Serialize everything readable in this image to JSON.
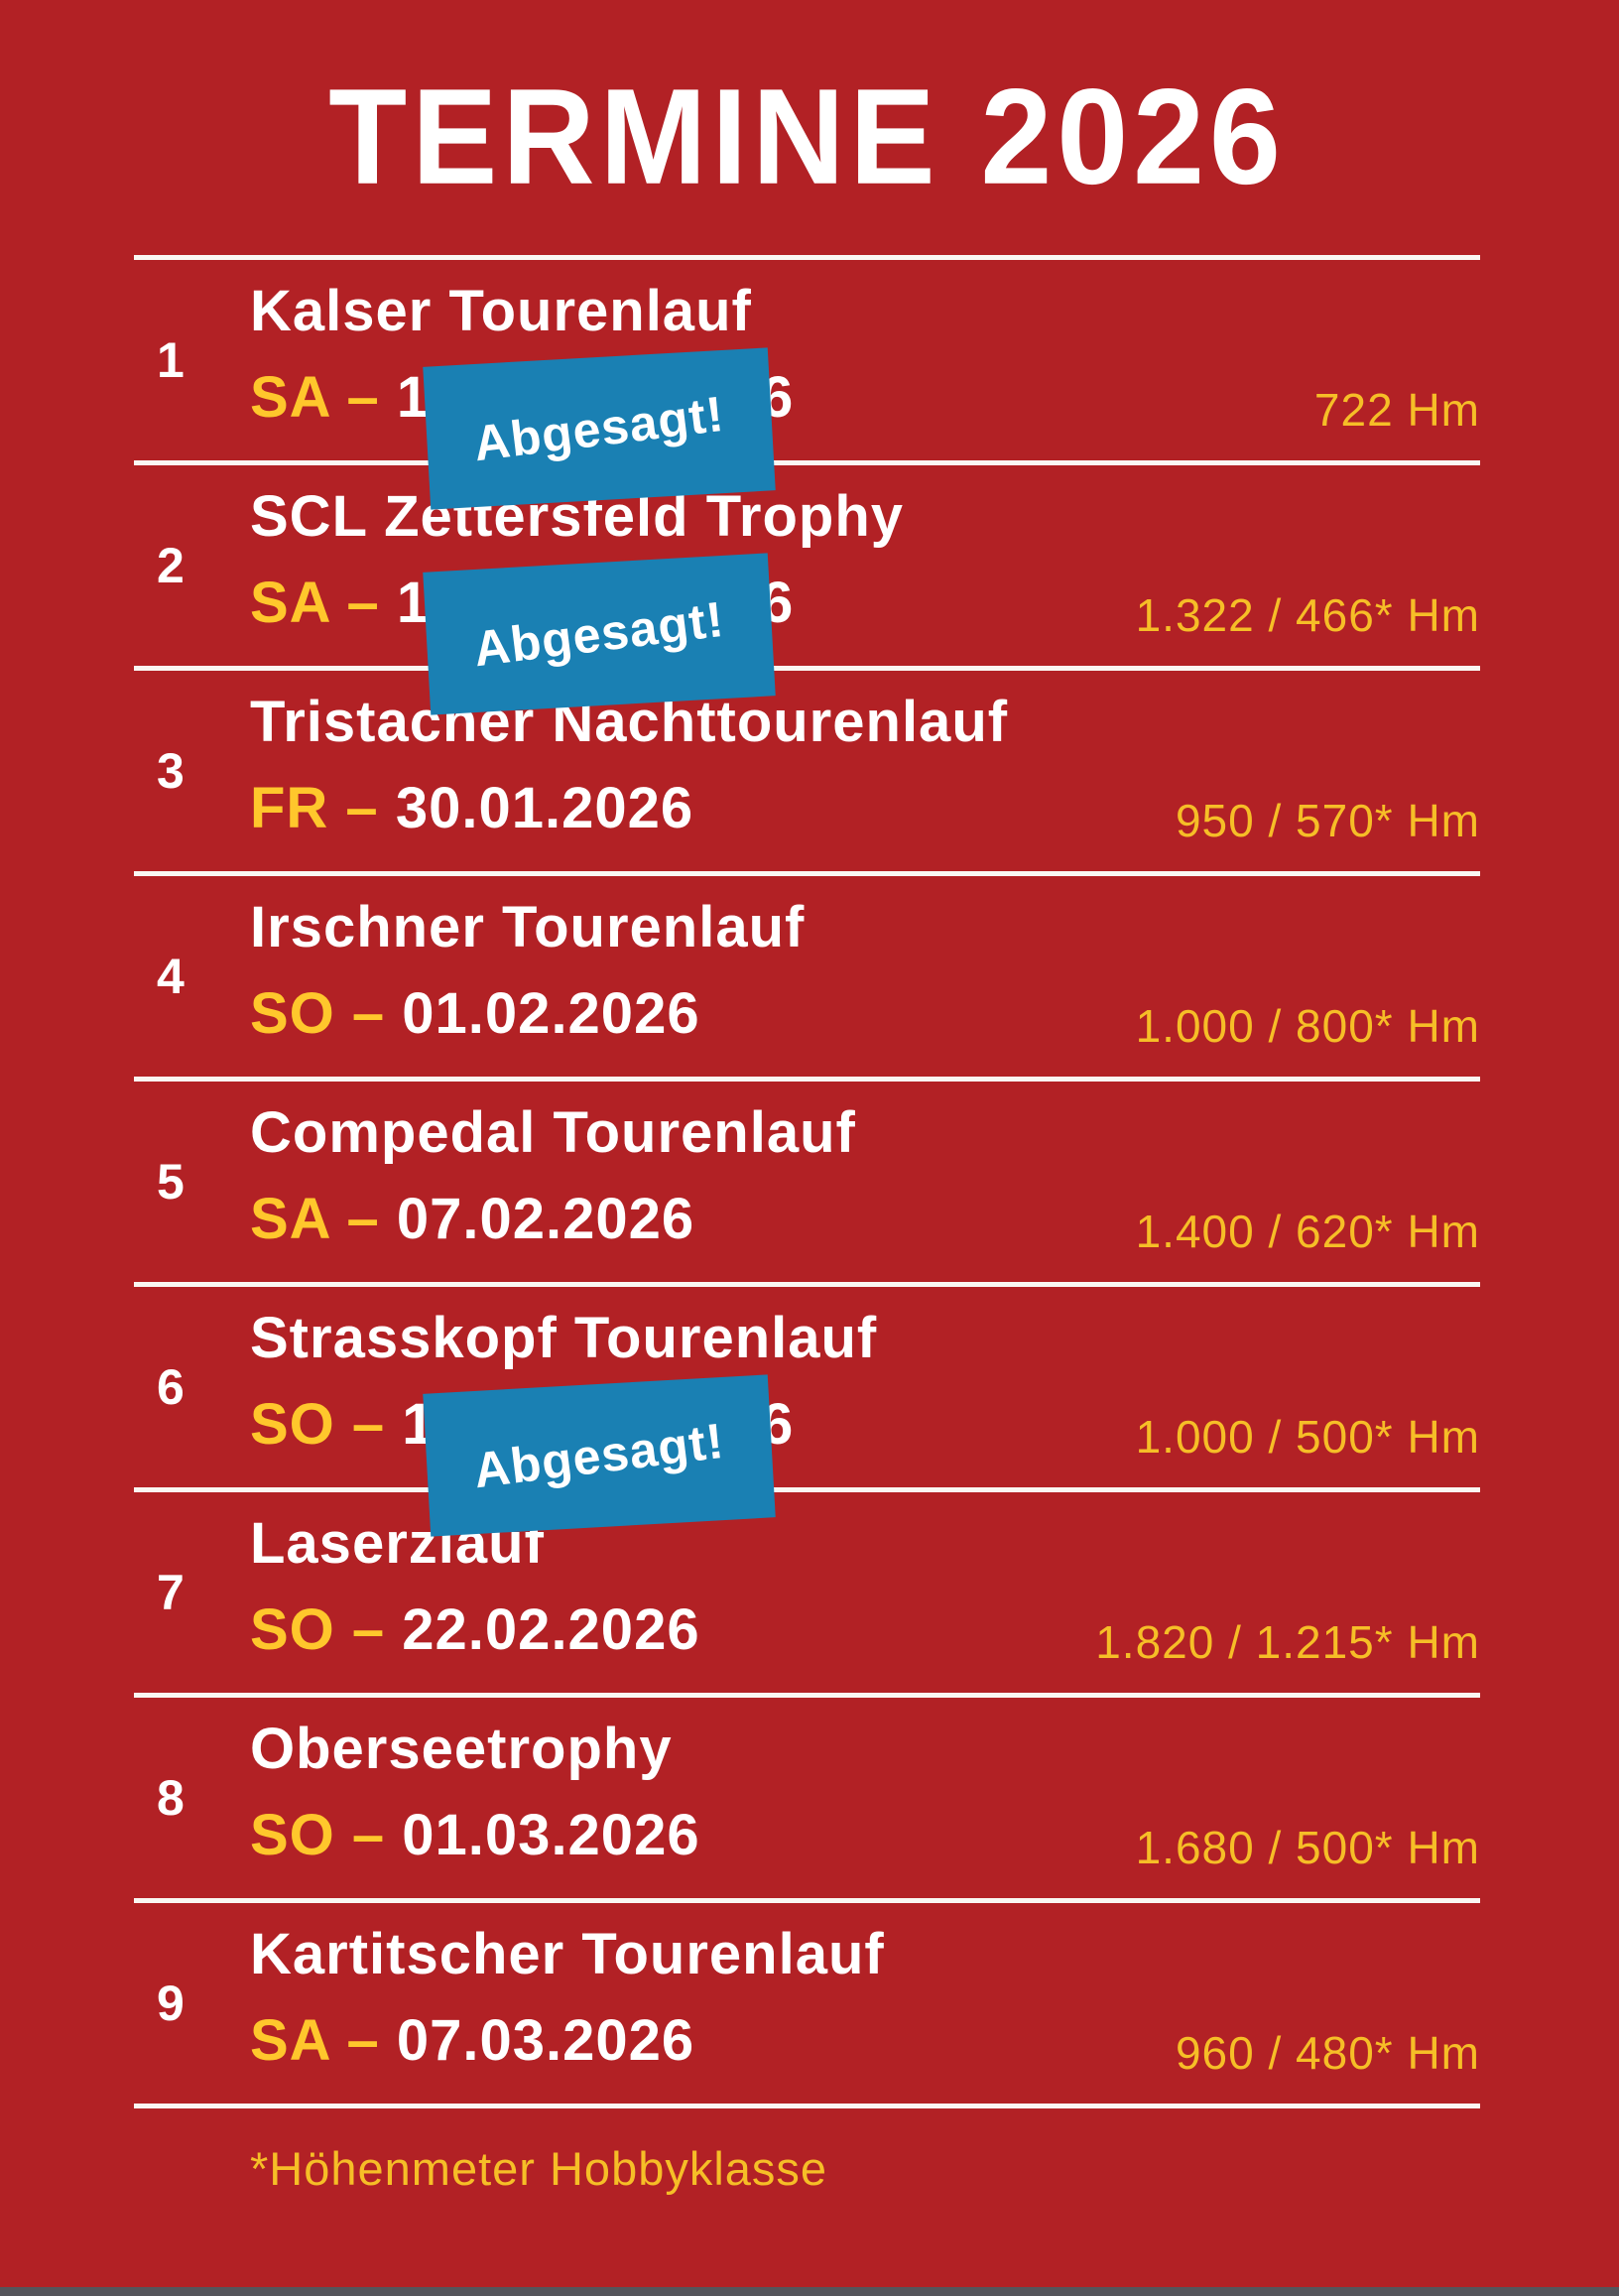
{
  "title": "TERMINE 2026",
  "stamp_label": "Abgesagt!",
  "footer": {
    "note": "*Höhenmeter Hobbyklasse"
  },
  "colors": {
    "bg_red": "#B22125",
    "date_yellow": "#FFC72C",
    "hm_yellow": "#F6BE27",
    "stamp_blue": "#1A80B3",
    "text_white": "#FFFFFF",
    "line_white": "#FAF7F3",
    "bottom_bar_gray": "#55555B"
  },
  "events": [
    {
      "num": "1",
      "name": "Kalser Tourenlauf",
      "day_dash": "SA – ",
      "date": "1",
      "date_tail": "6",
      "cancelled": true,
      "hm": "722 Hm"
    },
    {
      "num": "2",
      "name": "SCL Zettersfeld Trophy",
      "day_dash": "SA – ",
      "date": "1",
      "date_tail": "6",
      "cancelled": true,
      "hm": "1.322 / 466* Hm"
    },
    {
      "num": "3",
      "name": "Tristacher Nachttourenlauf",
      "day_dash": "FR – ",
      "date": "30.01.2026",
      "date_tail": "",
      "cancelled": false,
      "hm": "950 / 570* Hm"
    },
    {
      "num": "4",
      "name": "Irschner Tourenlauf",
      "day_dash": "SO – ",
      "date": "01.02.2026",
      "date_tail": "",
      "cancelled": false,
      "hm": "1.000 / 800* Hm"
    },
    {
      "num": "5",
      "name": "Compedal Tourenlauf",
      "day_dash": "SA – ",
      "date": "07.02.2026",
      "date_tail": "",
      "cancelled": false,
      "hm": "1.400 / 620* Hm"
    },
    {
      "num": "6",
      "name": "Strasskopf Tourenlauf",
      "day_dash": "SO – ",
      "date": "1",
      "date_tail": "6",
      "cancelled": true,
      "hm": "1.000 / 500* Hm"
    },
    {
      "num": "7",
      "name": "Laserzlauf",
      "day_dash": "SO – ",
      "date": "22.02.2026",
      "date_tail": "",
      "cancelled": false,
      "hm": "1.820 / 1.215* Hm"
    },
    {
      "num": "8",
      "name": "Oberseetrophy",
      "day_dash": "SO – ",
      "date": "01.03.2026",
      "date_tail": "",
      "cancelled": false,
      "hm": "1.680 / 500* Hm"
    },
    {
      "num": "9",
      "name": "Kartitscher Tourenlauf",
      "day_dash": "SA – ",
      "date": "07.03.2026",
      "date_tail": "",
      "cancelled": false,
      "hm": "960 / 480* Hm"
    }
  ]
}
